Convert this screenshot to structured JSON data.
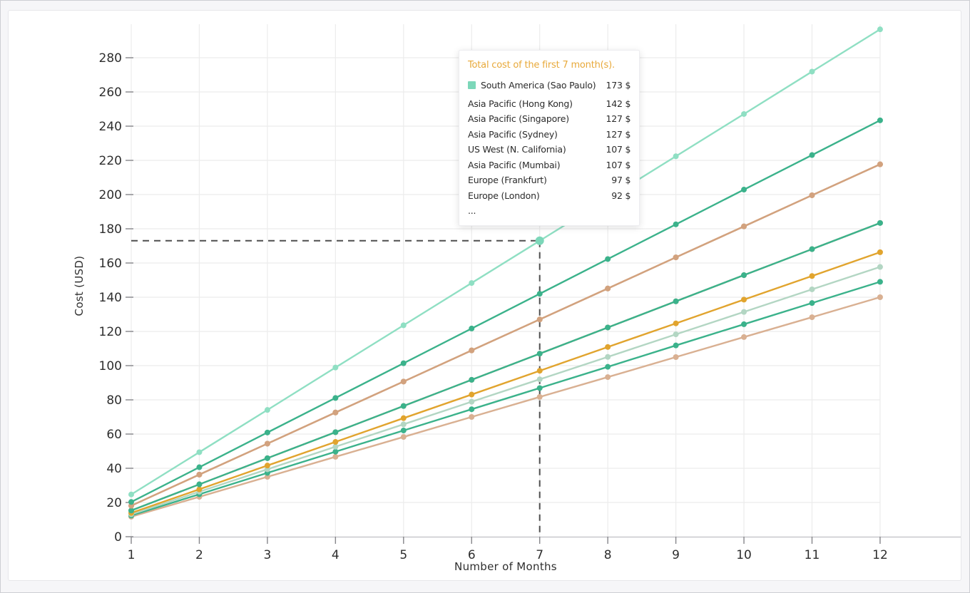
{
  "colors": {
    "background": "#f6f6f8",
    "panel_background": "#ffffff",
    "panel_border": "#e7e7ea",
    "gridline": "#ececec",
    "axis_line": "#c8c8cc",
    "tick": "#86868a",
    "tick_label": "#2e2e2e",
    "crosshair": "#4e4e4e",
    "tooltip_title": "#e8a93a",
    "hover_point": "#7cd7b9"
  },
  "chart_data": {
    "type": "line",
    "title": "",
    "xlabel": "Number of Months",
    "ylabel": "Cost (USD)",
    "x": [
      1,
      2,
      3,
      4,
      5,
      6,
      7,
      8,
      9,
      10,
      11,
      12
    ],
    "y_ticks": [
      0,
      20,
      40,
      60,
      80,
      100,
      120,
      140,
      160,
      180,
      200,
      220,
      240,
      260,
      280
    ],
    "ylim": [
      0,
      300
    ],
    "grid": true,
    "legend_position": "none",
    "series": [
      {
        "name": "South America (Sao Paulo)",
        "color": "#8fdfc3",
        "total_7_months": 173,
        "values": [
          24.7,
          49.4,
          74.1,
          98.9,
          123.6,
          148.3,
          173,
          197.7,
          222.4,
          247.1,
          271.9,
          296.6
        ]
      },
      {
        "name": "Asia Pacific (Hong Kong)",
        "color": "#3bb28b",
        "total_7_months": 142,
        "values": [
          20.3,
          40.6,
          60.9,
          81.1,
          101.4,
          121.7,
          142,
          162.3,
          182.6,
          202.9,
          223.1,
          243.4
        ]
      },
      {
        "name": "Asia Pacific (Singapore)",
        "color": "#d2a27e",
        "total_7_months": 127,
        "values": [
          18.1,
          36.3,
          54.4,
          72.6,
          90.7,
          108.9,
          127,
          145.1,
          163.3,
          181.4,
          199.6,
          217.7
        ]
      },
      {
        "name": "Asia Pacific (Sydney)",
        "color": "#d2a27e",
        "total_7_months": 127,
        "values": [
          18.1,
          36.3,
          54.4,
          72.6,
          90.7,
          108.9,
          127,
          145.1,
          163.3,
          181.4,
          199.6,
          217.7
        ]
      },
      {
        "name": "US West (N. California)",
        "color": "#3bb28b",
        "total_7_months": 107,
        "values": [
          15.3,
          30.6,
          45.9,
          61.1,
          76.4,
          91.7,
          107,
          122.3,
          137.6,
          152.9,
          168.1,
          183.4
        ]
      },
      {
        "name": "Asia Pacific (Mumbai)",
        "color": "#d2a27e",
        "total_7_months": 107,
        "values": [
          15.3,
          30.6,
          45.9,
          61.1,
          76.4,
          91.7,
          107,
          122.3,
          137.6,
          152.9,
          168.1,
          183.4
        ]
      },
      {
        "name": "Europe (Frankfurt)",
        "color": "#e1a42e",
        "total_7_months": 97,
        "values": [
          13.9,
          27.7,
          41.6,
          55.4,
          69.3,
          83.1,
          97,
          110.9,
          124.7,
          138.6,
          152.4,
          166.3
        ]
      },
      {
        "name": "Europe (London)",
        "color": "#b3d6c3",
        "total_7_months": 92,
        "values": [
          13.1,
          26.3,
          39.4,
          52.6,
          65.7,
          78.9,
          92,
          105.1,
          118.3,
          131.4,
          144.6,
          157.7
        ]
      },
      {
        "name": "(unlabeled)",
        "color": "#3bb28b",
        "total_7_months": 87,
        "values": [
          12.4,
          24.8,
          37.3,
          49.7,
          62.1,
          74.5,
          86.9,
          99.3,
          111.8,
          124.2,
          136.6,
          149
        ]
      },
      {
        "name": "(unlabeled)",
        "color": "#d9b092",
        "total_7_months": 82,
        "values": [
          11.7,
          23.3,
          35,
          46.7,
          58.3,
          70,
          81.7,
          93.3,
          105,
          116.7,
          128.3,
          140
        ]
      }
    ],
    "hover": {
      "month": 7,
      "value": 173,
      "series": "South America (Sao Paulo)"
    }
  },
  "tooltip": {
    "title": "Total cost of the first 7 month(s).",
    "rows": [
      {
        "label": "South America (Sao Paulo)",
        "value": "173 $",
        "swatch": "#7cd7b9"
      },
      {
        "label": "Asia Pacific (Hong Kong)",
        "value": "142 $"
      },
      {
        "label": "Asia Pacific (Singapore)",
        "value": "127 $"
      },
      {
        "label": "Asia Pacific (Sydney)",
        "value": "127 $"
      },
      {
        "label": "US West (N. California)",
        "value": "107 $"
      },
      {
        "label": "Asia Pacific (Mumbai)",
        "value": "107 $"
      },
      {
        "label": "Europe (Frankfurt)",
        "value": "97 $"
      },
      {
        "label": "Europe (London)",
        "value": "92 $"
      },
      {
        "label": "...",
        "value": ""
      }
    ]
  }
}
